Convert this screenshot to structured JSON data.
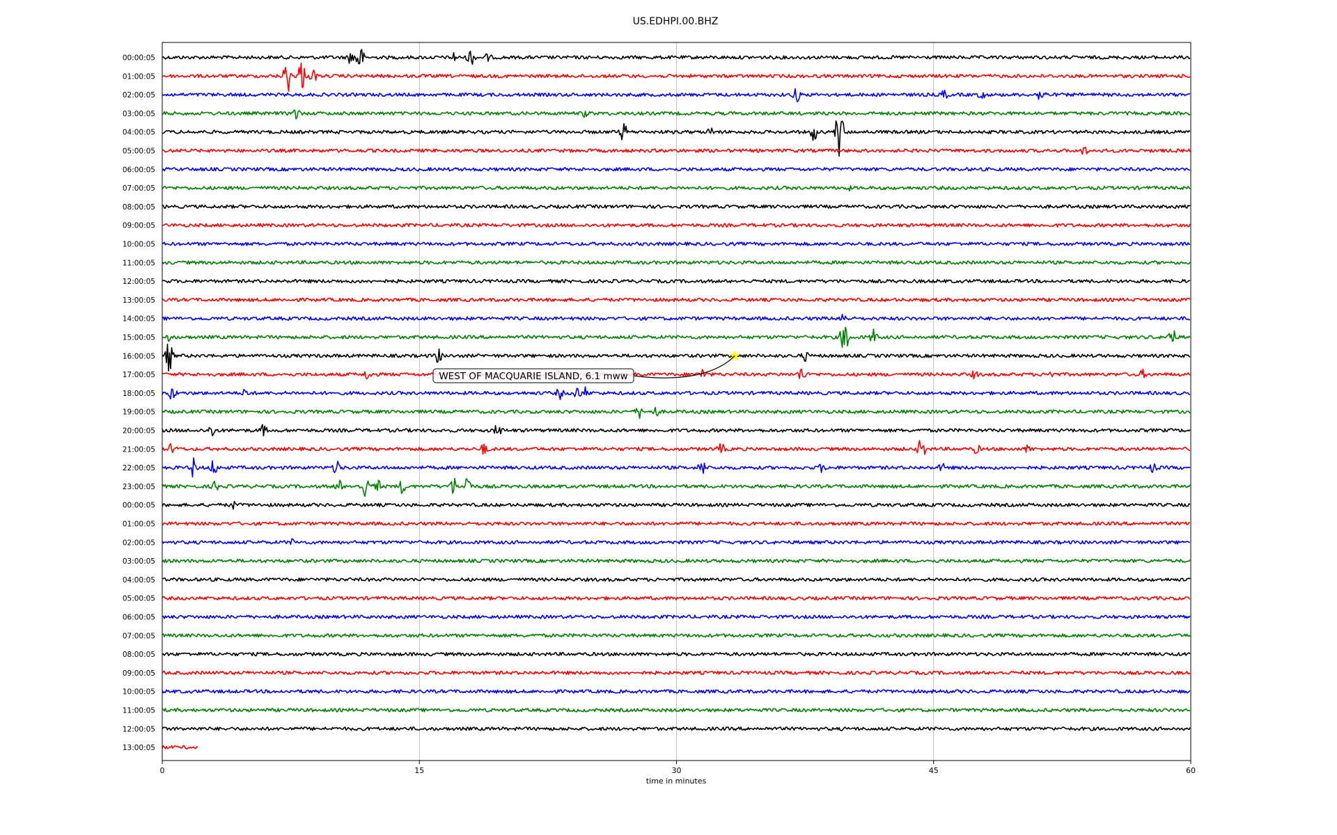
{
  "chart_data": {
    "type": "line",
    "title": "US.EDHPI.00.BHZ",
    "xlabel": "time in minutes",
    "ylabel": "",
    "xlim": [
      0,
      60
    ],
    "xticks": [
      0,
      15,
      30,
      45,
      60
    ],
    "grid": "vertical",
    "line_colors": [
      "#000000",
      "#ff0000",
      "#0000ff",
      "#008000"
    ],
    "rows": [
      {
        "label": "00:00:05",
        "end_minute": 60,
        "events": [
          [
            11.5,
            2.6
          ],
          [
            18,
            1.6
          ],
          [
            11,
            1.2
          ],
          [
            17,
            0.9
          ],
          [
            19,
            0.8
          ]
        ]
      },
      {
        "label": "01:00:05",
        "end_minute": 60,
        "events": [
          [
            7.3,
            3
          ],
          [
            8.1,
            2.8
          ],
          [
            8.8,
            1.2
          ]
        ]
      },
      {
        "label": "02:00:05",
        "end_minute": 60,
        "events": [
          [
            37,
            1.3
          ],
          [
            45.6,
            1
          ],
          [
            47.8,
            0.9
          ],
          [
            51.3,
            1.7
          ]
        ]
      },
      {
        "label": "03:00:05",
        "end_minute": 60,
        "events": [
          [
            7.8,
            1.2
          ],
          [
            24.7,
            0.8
          ]
        ]
      },
      {
        "label": "04:00:05",
        "end_minute": 60,
        "events": [
          [
            26.9,
            1.6
          ],
          [
            32,
            0.8
          ],
          [
            38,
            1.5
          ],
          [
            39.5,
            4.2
          ]
        ]
      },
      {
        "label": "05:00:05",
        "end_minute": 60,
        "events": [
          [
            53.8,
            0.9
          ]
        ]
      },
      {
        "label": "06:00:05",
        "end_minute": 60,
        "events": []
      },
      {
        "label": "07:00:05",
        "end_minute": 60,
        "events": [
          [
            40,
            0.6
          ]
        ]
      },
      {
        "label": "08:00:05",
        "end_minute": 60,
        "events": []
      },
      {
        "label": "09:00:05",
        "end_minute": 60,
        "events": []
      },
      {
        "label": "10:00:05",
        "end_minute": 60,
        "events": []
      },
      {
        "label": "11:00:05",
        "end_minute": 60,
        "events": []
      },
      {
        "label": "12:00:05",
        "end_minute": 60,
        "events": []
      },
      {
        "label": "13:00:05",
        "end_minute": 60,
        "events": []
      },
      {
        "label": "14:00:05",
        "end_minute": 60,
        "events": [
          [
            39.7,
            1.2
          ]
        ]
      },
      {
        "label": "15:00:05",
        "end_minute": 60,
        "events": [
          [
            39.8,
            3
          ],
          [
            41.5,
            1.3
          ],
          [
            58.9,
            1.7
          ],
          [
            0.4,
            0.8
          ]
        ]
      },
      {
        "label": "16:00:05",
        "end_minute": 60,
        "events": [
          [
            0.4,
            2.5
          ],
          [
            16.1,
            1.3
          ],
          [
            37.5,
            0.9
          ]
        ]
      },
      {
        "label": "17:00:05",
        "end_minute": 60,
        "events": [
          [
            12,
            1.1
          ],
          [
            23,
            1
          ],
          [
            31.5,
            1
          ],
          [
            37.3,
            1.4
          ],
          [
            47.4,
            0.8
          ],
          [
            51.8,
            0.9
          ],
          [
            57.2,
            0.8
          ]
        ]
      },
      {
        "label": "18:00:05",
        "end_minute": 60,
        "events": [
          [
            0.6,
            1.3
          ],
          [
            4.9,
            1
          ],
          [
            23.2,
            1
          ],
          [
            24.2,
            1.2
          ],
          [
            24.7,
            1
          ]
        ]
      },
      {
        "label": "19:00:05",
        "end_minute": 60,
        "events": [
          [
            27.8,
            1.2
          ],
          [
            28.8,
            0.9
          ]
        ]
      },
      {
        "label": "20:00:05",
        "end_minute": 60,
        "events": [
          [
            2.9,
            1.2
          ],
          [
            5.9,
            1
          ],
          [
            19.6,
            1.3
          ]
        ]
      },
      {
        "label": "21:00:05",
        "end_minute": 60,
        "events": [
          [
            0.6,
            1.2
          ],
          [
            18.8,
            1.1
          ],
          [
            32.6,
            1.1
          ],
          [
            44.3,
            1.9
          ],
          [
            47.5,
            0.9
          ],
          [
            50.5,
            0.8
          ]
        ]
      },
      {
        "label": "22:00:05",
        "end_minute": 60,
        "events": [
          [
            1.8,
            1.6
          ],
          [
            3,
            1.4
          ],
          [
            10.2,
            1.4
          ],
          [
            31.5,
            1.5
          ],
          [
            38.5,
            0.9
          ],
          [
            45.5,
            0.8
          ],
          [
            57.8,
            0.9
          ]
        ]
      },
      {
        "label": "23:00:05",
        "end_minute": 60,
        "events": [
          [
            3.1,
            1
          ],
          [
            10.3,
            1.2
          ],
          [
            11.8,
            2.1
          ],
          [
            12.5,
            1.5
          ],
          [
            14,
            1.2
          ],
          [
            17,
            1.6
          ],
          [
            17.8,
            2.1
          ]
        ]
      },
      {
        "label": "00:00:05",
        "end_minute": 60,
        "events": [
          [
            4.1,
            0.8
          ]
        ]
      },
      {
        "label": "01:00:05",
        "end_minute": 60,
        "events": []
      },
      {
        "label": "02:00:05",
        "end_minute": 60,
        "events": [
          [
            7.6,
            0.6
          ]
        ]
      },
      {
        "label": "03:00:05",
        "end_minute": 60,
        "events": []
      },
      {
        "label": "04:00:05",
        "end_minute": 60,
        "events": []
      },
      {
        "label": "05:00:05",
        "end_minute": 60,
        "events": []
      },
      {
        "label": "06:00:05",
        "end_minute": 60,
        "events": []
      },
      {
        "label": "07:00:05",
        "end_minute": 60,
        "events": []
      },
      {
        "label": "08:00:05",
        "end_minute": 60,
        "events": []
      },
      {
        "label": "09:00:05",
        "end_minute": 60,
        "events": []
      },
      {
        "label": "10:00:05",
        "end_minute": 60,
        "events": []
      },
      {
        "label": "11:00:05",
        "end_minute": 60,
        "events": []
      },
      {
        "label": "12:00:05",
        "end_minute": 60,
        "events": []
      },
      {
        "label": "13:00:05",
        "end_minute": 2.1,
        "events": []
      }
    ],
    "annotations": [
      {
        "text": "WEST OF MACQUARIE ISLAND, 6.1 mww",
        "row": 16,
        "minute": 33.4,
        "marker": "star",
        "marker_color": "#ffff00"
      }
    ]
  }
}
